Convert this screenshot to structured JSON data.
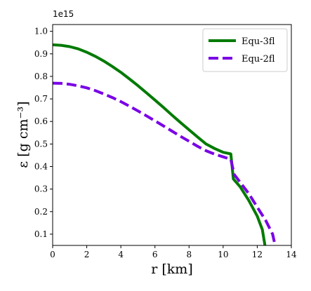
{
  "chart_data": {
    "type": "line",
    "xlabel": "r [km]",
    "ylabel": "ε [g cm⁻³]",
    "y_offset_text": "1e15",
    "xlim": [
      0,
      14
    ],
    "ylim": [
      0.05,
      1.03
    ],
    "x_ticks": [
      0,
      2,
      4,
      6,
      8,
      10,
      12,
      14
    ],
    "y_ticks": [
      0.1,
      0.2,
      0.3,
      0.4,
      0.5,
      0.6,
      0.7,
      0.8,
      0.9,
      1.0
    ],
    "grid": false,
    "legend_position": "top-right",
    "series": [
      {
        "name": "Equ-3fl",
        "color": "#007a00",
        "dash": "solid",
        "points": [
          [
            0,
            0.94
          ],
          [
            0.5,
            0.938
          ],
          [
            1,
            0.932
          ],
          [
            1.5,
            0.922
          ],
          [
            2,
            0.907
          ],
          [
            2.5,
            0.889
          ],
          [
            3,
            0.868
          ],
          [
            3.5,
            0.844
          ],
          [
            4,
            0.818
          ],
          [
            4.5,
            0.789
          ],
          [
            5,
            0.759
          ],
          [
            5.5,
            0.727
          ],
          [
            6,
            0.695
          ],
          [
            6.5,
            0.662
          ],
          [
            7,
            0.628
          ],
          [
            7.5,
            0.595
          ],
          [
            8,
            0.563
          ],
          [
            8.5,
            0.531
          ],
          [
            9,
            0.5
          ],
          [
            9.5,
            0.48
          ],
          [
            10,
            0.463
          ],
          [
            10.45,
            0.456
          ],
          [
            10.6,
            0.345
          ],
          [
            11,
            0.31
          ],
          [
            11.5,
            0.25
          ],
          [
            12,
            0.18
          ],
          [
            12.3,
            0.12
          ],
          [
            12.45,
            0.05
          ]
        ]
      },
      {
        "name": "Equ-2fl",
        "color": "#7a00e6",
        "dash": "dashed",
        "points": [
          [
            0,
            0.77
          ],
          [
            0.5,
            0.769
          ],
          [
            1,
            0.765
          ],
          [
            1.5,
            0.758
          ],
          [
            2,
            0.749
          ],
          [
            2.5,
            0.737
          ],
          [
            3,
            0.722
          ],
          [
            3.5,
            0.706
          ],
          [
            4,
            0.688
          ],
          [
            4.5,
            0.668
          ],
          [
            5,
            0.647
          ],
          [
            5.5,
            0.625
          ],
          [
            6,
            0.603
          ],
          [
            6.5,
            0.58
          ],
          [
            7,
            0.557
          ],
          [
            7.5,
            0.534
          ],
          [
            8,
            0.512
          ],
          [
            8.5,
            0.49
          ],
          [
            9,
            0.47
          ],
          [
            9.5,
            0.455
          ],
          [
            10,
            0.443
          ],
          [
            10.45,
            0.432
          ],
          [
            10.65,
            0.365
          ],
          [
            11,
            0.33
          ],
          [
            11.5,
            0.28
          ],
          [
            12,
            0.22
          ],
          [
            12.5,
            0.16
          ],
          [
            12.9,
            0.1
          ],
          [
            13.05,
            0.05
          ]
        ]
      }
    ]
  }
}
